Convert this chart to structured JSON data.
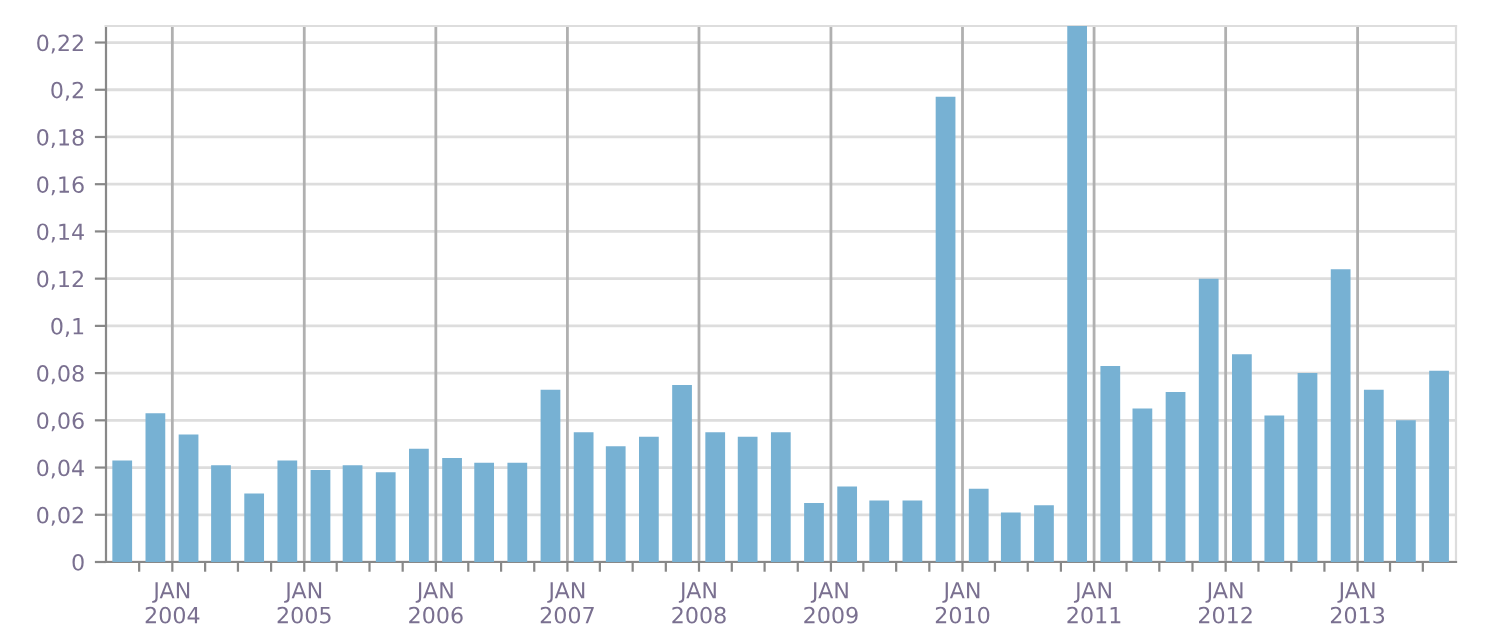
{
  "chart_data": {
    "type": "bar",
    "color": "#77b1d3",
    "x": [
      "2003-08-15",
      "2003-11-15",
      "2004-02-15",
      "2004-05-15",
      "2004-08-15",
      "2004-11-15",
      "2005-02-15",
      "2005-05-15",
      "2005-08-15",
      "2005-11-15",
      "2006-02-15",
      "2006-05-15",
      "2006-08-15",
      "2006-11-15",
      "2007-02-15",
      "2007-05-15",
      "2007-08-15",
      "2007-11-15",
      "2008-02-15",
      "2008-05-15",
      "2008-08-15",
      "2008-11-15",
      "2009-02-15",
      "2009-05-15",
      "2009-08-15",
      "2009-11-15",
      "2010-02-15",
      "2010-05-15",
      "2010-08-15",
      "2010-11-15",
      "2011-02-15",
      "2011-05-15",
      "2011-08-15",
      "2011-11-15",
      "2012-02-15",
      "2012-05-15",
      "2012-08-15",
      "2012-11-15",
      "2013-02-15",
      "2013-05-15",
      "2013-08-15"
    ],
    "values": [
      0.043,
      0.063,
      0.054,
      0.041,
      0.029,
      0.043,
      0.039,
      0.041,
      0.038,
      0.048,
      0.044,
      0.042,
      0.042,
      0.073,
      0.055,
      0.049,
      0.053,
      0.075,
      0.055,
      0.053,
      0.055,
      0.025,
      0.032,
      0.026,
      0.026,
      0.197,
      0.031,
      0.021,
      0.024,
      0.227,
      0.083,
      0.065,
      0.072,
      0.12,
      0.088,
      0.062,
      0.08,
      0.124,
      0.073,
      0.06,
      0.081
    ],
    "xlim": [
      "2003-07-01",
      "2013-10-01"
    ],
    "xticks": [
      {
        "value": "2003-10-01",
        "label": null
      },
      {
        "value": "2004-01-01",
        "label": "JAN\n2004"
      },
      {
        "value": "2004-04-01",
        "label": null
      },
      {
        "value": "2004-07-01",
        "label": null
      },
      {
        "value": "2004-10-01",
        "label": null
      },
      {
        "value": "2005-01-01",
        "label": "JAN\n2005"
      },
      {
        "value": "2005-04-01",
        "label": null
      },
      {
        "value": "2005-07-01",
        "label": null
      },
      {
        "value": "2005-10-01",
        "label": null
      },
      {
        "value": "2006-01-01",
        "label": "JAN\n2006"
      },
      {
        "value": "2006-04-01",
        "label": null
      },
      {
        "value": "2006-07-01",
        "label": null
      },
      {
        "value": "2006-10-01",
        "label": null
      },
      {
        "value": "2007-01-01",
        "label": "JAN\n2007"
      },
      {
        "value": "2007-04-01",
        "label": null
      },
      {
        "value": "2007-07-01",
        "label": null
      },
      {
        "value": "2007-10-01",
        "label": null
      },
      {
        "value": "2008-01-01",
        "label": "JAN\n2008"
      },
      {
        "value": "2008-04-01",
        "label": null
      },
      {
        "value": "2008-07-01",
        "label": null
      },
      {
        "value": "2008-10-01",
        "label": null
      },
      {
        "value": "2009-01-01",
        "label": "JAN\n2009"
      },
      {
        "value": "2009-04-01",
        "label": null
      },
      {
        "value": "2009-07-01",
        "label": null
      },
      {
        "value": "2009-10-01",
        "label": null
      },
      {
        "value": "2010-01-01",
        "label": "JAN\n2010"
      },
      {
        "value": "2010-04-01",
        "label": null
      },
      {
        "value": "2010-07-01",
        "label": null
      },
      {
        "value": "2010-10-01",
        "label": null
      },
      {
        "value": "2011-01-01",
        "label": "JAN\n2011"
      },
      {
        "value": "2011-04-01",
        "label": null
      },
      {
        "value": "2011-07-01",
        "label": null
      },
      {
        "value": "2011-10-01",
        "label": null
      },
      {
        "value": "2012-01-01",
        "label": "JAN\n2012"
      },
      {
        "value": "2012-04-01",
        "label": null
      },
      {
        "value": "2012-07-01",
        "label": null
      },
      {
        "value": "2012-10-01",
        "label": null
      },
      {
        "value": "2013-01-01",
        "label": "JAN\n2013"
      },
      {
        "value": "2013-04-01",
        "label": null
      },
      {
        "value": "2013-07-01",
        "label": null
      }
    ],
    "ylim": [
      0,
      0.227
    ],
    "yticks": [
      {
        "value": 0,
        "label": "0"
      },
      {
        "value": 0.02,
        "label": "0,02"
      },
      {
        "value": 0.04,
        "label": "0,04"
      },
      {
        "value": 0.06,
        "label": "0,06"
      },
      {
        "value": 0.08,
        "label": "0,08"
      },
      {
        "value": 0.1,
        "label": "0,1"
      },
      {
        "value": 0.12,
        "label": "0,12"
      },
      {
        "value": 0.14,
        "label": "0,14"
      },
      {
        "value": 0.16,
        "label": "0,16"
      },
      {
        "value": 0.18,
        "label": "0,18"
      },
      {
        "value": 0.2,
        "label": "0,2"
      },
      {
        "value": 0.22,
        "label": "0,22"
      }
    ],
    "grid": true
  }
}
